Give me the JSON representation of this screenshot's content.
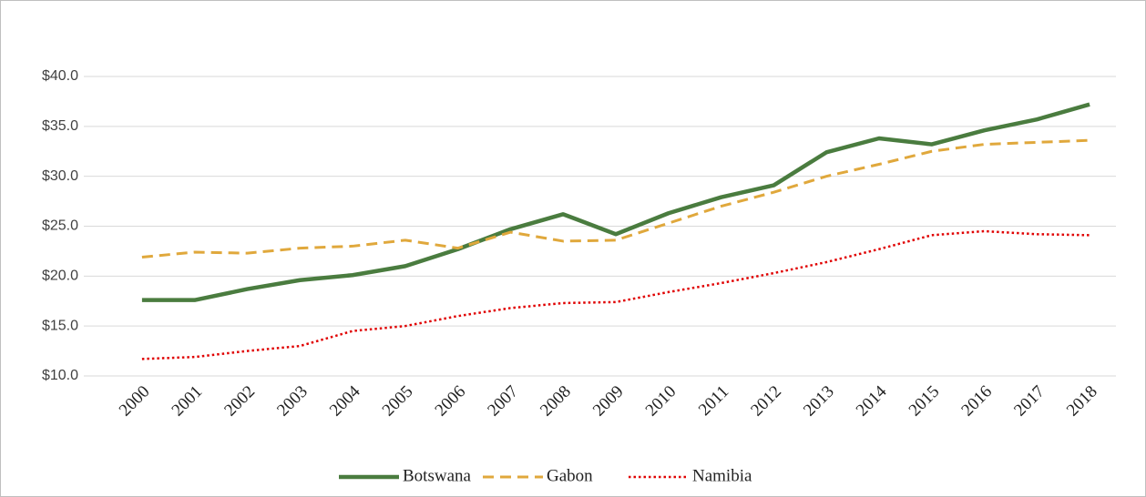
{
  "chart_data": {
    "type": "line",
    "categories": [
      "2000",
      "2001",
      "2002",
      "2003",
      "2004",
      "2005",
      "2006",
      "2007",
      "2008",
      "2009",
      "2010",
      "2011",
      "2012",
      "2013",
      "2014",
      "2015",
      "2016",
      "2017",
      "2018"
    ],
    "series": [
      {
        "name": "Botswana",
        "color": "#4a7c3f",
        "dash": "solid",
        "values": [
          17.6,
          17.6,
          18.7,
          19.6,
          20.1,
          21.0,
          22.7,
          24.7,
          26.2,
          24.2,
          26.3,
          27.9,
          29.1,
          32.4,
          33.8,
          33.2,
          34.6,
          35.7,
          37.2
        ]
      },
      {
        "name": "Gabon",
        "color": "#e0a83c",
        "dash": "dashed",
        "values": [
          21.9,
          22.4,
          22.3,
          22.8,
          23.0,
          23.6,
          22.8,
          24.4,
          23.5,
          23.6,
          25.3,
          27.0,
          28.4,
          30.0,
          31.2,
          32.5,
          33.2,
          33.4,
          33.6
        ]
      },
      {
        "name": "Namibia",
        "color": "#e00000",
        "dash": "dotted",
        "values": [
          11.7,
          11.9,
          12.5,
          13.0,
          14.5,
          15.0,
          16.0,
          16.8,
          17.3,
          17.4,
          18.4,
          19.3,
          20.3,
          21.4,
          22.7,
          24.1,
          24.5,
          24.2,
          24.1
        ]
      }
    ],
    "ylim": [
      10,
      40
    ],
    "yticks": [
      {
        "value": 10,
        "label": "$10.0"
      },
      {
        "value": 15,
        "label": "$15.0"
      },
      {
        "value": 20,
        "label": "$20.0"
      },
      {
        "value": 25,
        "label": "$25.0"
      },
      {
        "value": 30,
        "label": "$30.0"
      },
      {
        "value": 35,
        "label": "$35.0"
      },
      {
        "value": 40,
        "label": "$40.0"
      }
    ],
    "grid": true,
    "legend": "bottom"
  }
}
